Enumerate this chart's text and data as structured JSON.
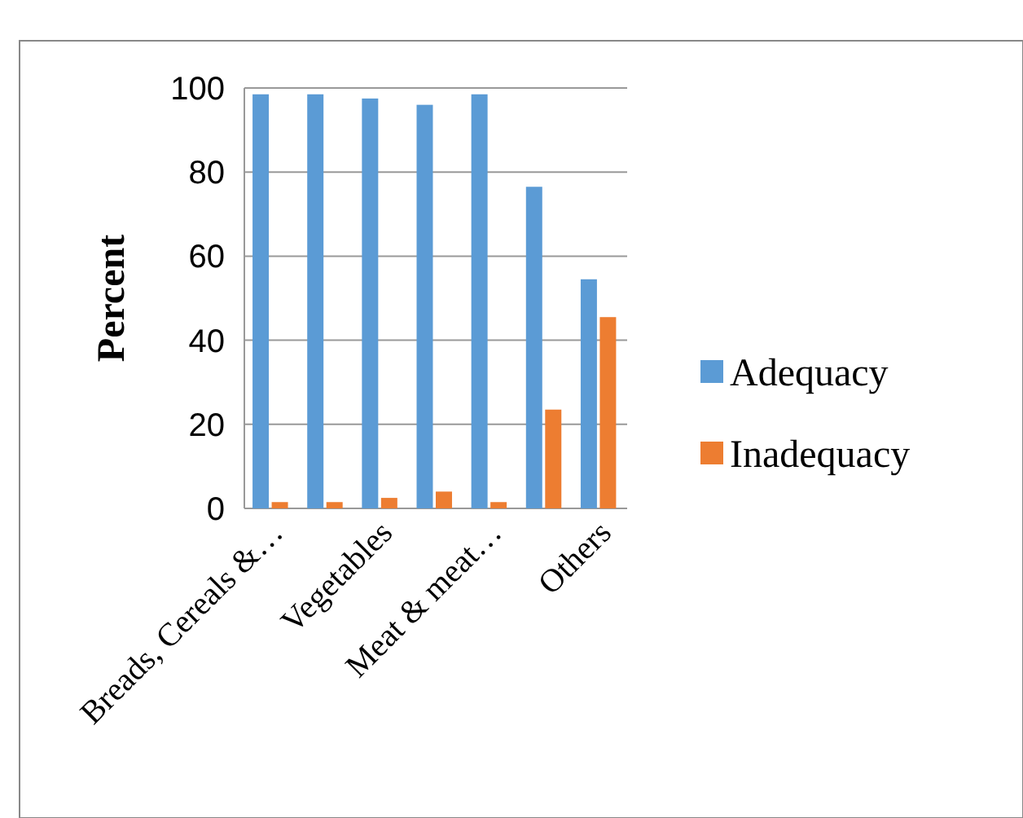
{
  "chart_data": {
    "type": "bar",
    "ylabel": "Percent",
    "categories": [
      "Breads, Cereals &…",
      null,
      "Vegetables",
      null,
      "Meat & meat…",
      null,
      "Others"
    ],
    "series": [
      {
        "name": "Adequacy",
        "color": "#5b9bd5",
        "values": [
          98.5,
          98.5,
          97.5,
          96,
          98.5,
          76.5,
          54.5
        ]
      },
      {
        "name": "Inadequacy",
        "color": "#ed7d31",
        "values": [
          1.5,
          1.5,
          2.5,
          4,
          1.5,
          23.5,
          45.5
        ]
      }
    ],
    "ylim": [
      0,
      100
    ],
    "yticks": [
      0,
      20,
      40,
      60,
      80,
      100
    ],
    "grid": true,
    "legend": "right"
  }
}
